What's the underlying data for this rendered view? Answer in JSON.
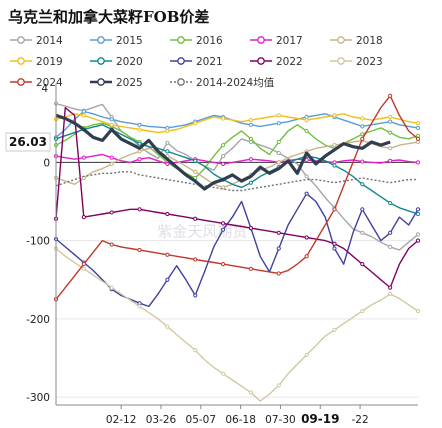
{
  "chart_data": {
    "type": "line",
    "title": "乌克兰和加拿大菜籽FOB价差",
    "xlabel": "",
    "ylabel": "",
    "ylim": [
      -310,
      95
    ],
    "y_ticks": [
      -300,
      -200,
      -100,
      0
    ],
    "y_tick_labels": [
      "-300",
      "-200",
      "-100",
      "0"
    ],
    "y_tick_top_partial": "4",
    "x_tick_labels": [
      "02-12",
      "03-26",
      "05-07",
      "06-18",
      "07-30",
      "09-19",
      "-22"
    ],
    "x_tick_positions": [
      0.18,
      0.29,
      0.4,
      0.51,
      0.62,
      0.73,
      0.84
    ],
    "highlight_x_label": "09-19",
    "highlight_value_label": "26.03",
    "highlight_value": 26.03,
    "watermark": "紫金天风期货",
    "legend_position": "top",
    "grid": true,
    "series": [
      {
        "name": "2014",
        "color": "#a6a6a6",
        "marker": true,
        "values": [
          75,
          72,
          68,
          66,
          70,
          74,
          58,
          40,
          32,
          20,
          12,
          5,
          25,
          15,
          10,
          2,
          -5,
          -10,
          8,
          18,
          30,
          26,
          22,
          18,
          12,
          5,
          -2,
          -18,
          -30,
          -45,
          -58,
          -72,
          -85,
          -90,
          -95,
          -102,
          -108,
          -112,
          -102,
          -92
        ]
      },
      {
        "name": "2015",
        "color": "#5b9bd5",
        "marker": true,
        "values": [
          32,
          42,
          55,
          65,
          62,
          58,
          55,
          52,
          50,
          48,
          46,
          45,
          44,
          46,
          48,
          52,
          56,
          60,
          58,
          54,
          50,
          48,
          46,
          48,
          50,
          52,
          55,
          58,
          60,
          62,
          58,
          54,
          50,
          46,
          48,
          50,
          52,
          48,
          46,
          44
        ]
      },
      {
        "name": "2016",
        "color": "#70c040",
        "marker": true,
        "values": [
          22,
          28,
          36,
          44,
          48,
          50,
          46,
          40,
          32,
          26,
          20,
          10,
          0,
          -8,
          -14,
          -20,
          -8,
          8,
          22,
          32,
          40,
          30,
          18,
          10,
          26,
          40,
          48,
          40,
          30,
          22,
          18,
          24,
          30,
          36,
          40,
          44,
          38,
          32,
          30,
          34
        ]
      },
      {
        "name": "2017",
        "color": "#e020c8",
        "marker": true,
        "values": [
          8,
          6,
          4,
          6,
          8,
          10,
          6,
          2,
          0,
          4,
          6,
          2,
          -2,
          0,
          2,
          4,
          2,
          0,
          -2,
          0,
          2,
          4,
          3,
          2,
          0,
          2,
          4,
          3,
          2,
          1,
          0,
          2,
          3,
          1,
          0,
          -1,
          2,
          3,
          1,
          0
        ]
      },
      {
        "name": "2018",
        "color": "#c8b48a",
        "marker": true,
        "values": [
          -20,
          -24,
          -28,
          -20,
          -12,
          -8,
          -2,
          5,
          10,
          14,
          18,
          14,
          8,
          2,
          -5,
          -12,
          -20,
          -28,
          -32,
          -28,
          -22,
          -16,
          -10,
          -6,
          0,
          6,
          10,
          14,
          18,
          20,
          22,
          24,
          26,
          28,
          24,
          20,
          18,
          22,
          24,
          26
        ]
      },
      {
        "name": "2019",
        "color": "#f0c020",
        "marker": true,
        "values": [
          55,
          58,
          62,
          60,
          56,
          52,
          48,
          46,
          44,
          42,
          40,
          38,
          40,
          42,
          46,
          50,
          54,
          58,
          56,
          54,
          52,
          54,
          56,
          58,
          60,
          58,
          56,
          54,
          56,
          58,
          60,
          62,
          58,
          56,
          54,
          56,
          58,
          55,
          52,
          50
        ]
      },
      {
        "name": "2020",
        "color": "#108890",
        "marker": true,
        "values": [
          30,
          34,
          38,
          42,
          45,
          48,
          42,
          36,
          30,
          24,
          20,
          18,
          14,
          10,
          6,
          2,
          -5,
          -15,
          -22,
          -28,
          -32,
          -26,
          -18,
          -12,
          -6,
          0,
          4,
          8,
          6,
          2,
          -4,
          -10,
          -18,
          -28,
          -36,
          -44,
          -52,
          -58,
          -62,
          -66
        ]
      },
      {
        "name": "2021",
        "color": "#4040a0",
        "marker": true,
        "values": [
          -98,
          -108,
          -118,
          -128,
          -138,
          -150,
          -162,
          -170,
          -175,
          -180,
          -184,
          -168,
          -150,
          -132,
          -150,
          -170,
          -140,
          -108,
          -86,
          -70,
          -50,
          -84,
          -120,
          -140,
          -110,
          -80,
          -60,
          -40,
          -50,
          -70,
          -110,
          -130,
          -90,
          -60,
          -80,
          -100,
          -90,
          -70,
          -80,
          -60
        ]
      },
      {
        "name": "2022",
        "color": "#800060",
        "marker": true,
        "values": [
          -72,
          70,
          60,
          -70,
          -68,
          -66,
          -64,
          -62,
          -60,
          -60,
          -62,
          -64,
          -66,
          -68,
          -70,
          -72,
          -74,
          -76,
          -78,
          -80,
          -82,
          -84,
          -86,
          -88,
          -90,
          -92,
          -94,
          -96,
          -98,
          -100,
          -104,
          -110,
          -120,
          -130,
          -140,
          -150,
          -160,
          -130,
          -110,
          -100
        ]
      },
      {
        "name": "2023",
        "color": "#d2c8a0",
        "marker": true,
        "values": [
          -110,
          -120,
          -128,
          -136,
          -144,
          -152,
          -160,
          -168,
          -176,
          -184,
          -192,
          -200,
          -210,
          -220,
          -230,
          -240,
          -252,
          -262,
          -270,
          -278,
          -286,
          -294,
          -305,
          -296,
          -285,
          -270,
          -258,
          -246,
          -234,
          -222,
          -214,
          -206,
          -198,
          -190,
          -182,
          -176,
          -168,
          -174,
          -182,
          -190
        ]
      },
      {
        "name": "2024",
        "color": "#c0392b",
        "marker": true,
        "values": [
          -175,
          -160,
          -145,
          -130,
          -115,
          -100,
          -105,
          -108,
          -110,
          -112,
          -114,
          -116,
          -118,
          -120,
          -122,
          -124,
          -126,
          -128,
          -130,
          -132,
          -134,
          -136,
          -138,
          -140,
          -142,
          -138,
          -130,
          -120,
          -100,
          -80,
          -60,
          -30,
          0,
          30,
          50,
          70,
          85,
          60,
          40,
          30
        ]
      },
      {
        "name": "2025",
        "color": "#2f3e50",
        "marker": true,
        "bold": true,
        "values": [
          60,
          56,
          50,
          42,
          32,
          28,
          42,
          30,
          24,
          18,
          28,
          14,
          4,
          -6,
          -16,
          -24,
          -34,
          -26,
          -22,
          -16,
          -24,
          -18,
          -6,
          -14,
          -8,
          2,
          -14,
          12,
          -2,
          8,
          16,
          24,
          20,
          18,
          26,
          22,
          26
        ]
      },
      {
        "name": "2014-2024均值",
        "color": "#707070",
        "marker": true,
        "dashed": true,
        "values": [
          -30,
          -26,
          -22,
          -18,
          -16,
          -14,
          -14,
          -12,
          -12,
          -16,
          -18,
          -20,
          -22,
          -24,
          -26,
          -28,
          -30,
          -32,
          -34,
          -36,
          -36,
          -34,
          -32,
          -30,
          -28,
          -26,
          -24,
          -22,
          -22,
          -24,
          -26,
          -24,
          -22,
          -20,
          -22,
          -24,
          -26,
          -24,
          -22,
          -22
        ]
      }
    ]
  }
}
